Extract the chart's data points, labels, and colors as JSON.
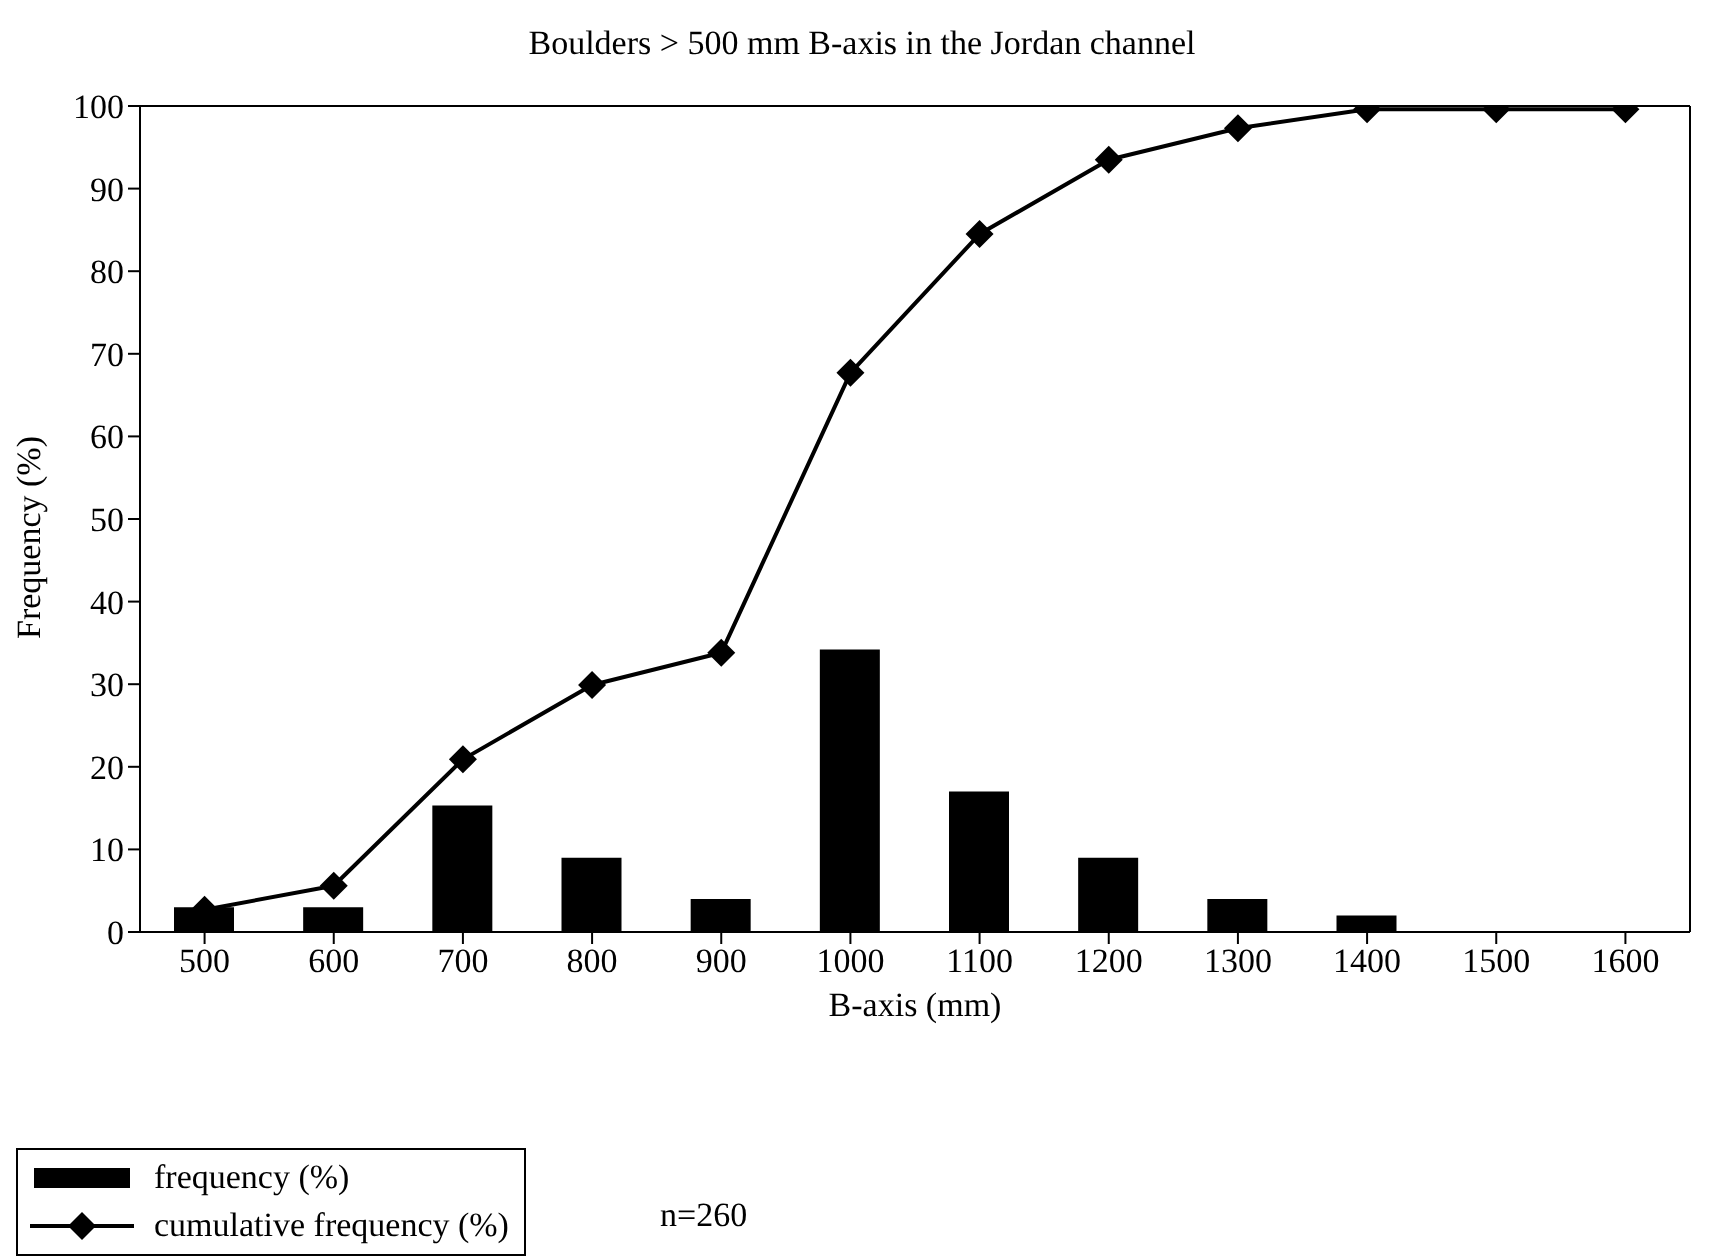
{
  "chart_data": {
    "type": "bar",
    "title": "Boulders > 500 mm B-axis in the Jordan channel",
    "xlabel": "B-axis (mm)",
    "ylabel": "Frequency (%)",
    "categories": [
      "500",
      "600",
      "700",
      "800",
      "900",
      "1000",
      "1100",
      "1200",
      "1300",
      "1400",
      "1500",
      "1600"
    ],
    "series": [
      {
        "name": "frequency (%)",
        "color": "#000000",
        "values": [
          3,
          3,
          15.3,
          9,
          4,
          34.2,
          17,
          9,
          4,
          2,
          0,
          0
        ]
      },
      {
        "name": "cumulative frequency (%)",
        "type": "line",
        "color": "#000000",
        "marker": "diamond",
        "values": [
          2.7,
          5.6,
          20.9,
          29.9,
          33.8,
          67.7,
          84.5,
          93.5,
          97.3,
          99.6,
          99.6,
          99.6
        ]
      }
    ],
    "ylim": [
      0,
      100
    ],
    "yticks": [
      0,
      10,
      20,
      30,
      40,
      50,
      60,
      70,
      80,
      90,
      100
    ],
    "grid": false,
    "legend": "bottom left",
    "annotations": [
      "n=260"
    ]
  }
}
